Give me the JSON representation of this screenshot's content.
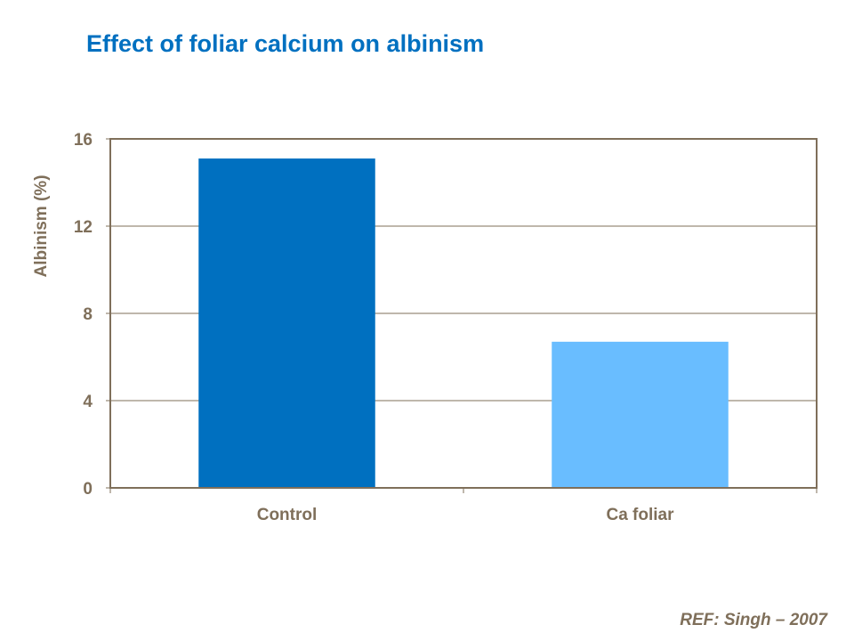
{
  "title": "Effect of foliar calcium on albinism",
  "reference": "REF: Singh – 2007",
  "chart_data": {
    "type": "bar",
    "title": "Effect of foliar calcium on albinism",
    "categories": [
      "Control",
      "Ca foliar"
    ],
    "values": [
      15.1,
      6.7
    ],
    "bar_colors": [
      "#0070C0",
      "#69BDFF"
    ],
    "xlabel": "",
    "ylabel": "Albinism (%)",
    "ylim": [
      0,
      16
    ],
    "yticks": [
      0,
      4,
      8,
      12,
      16
    ],
    "ytick_labels": [
      "0",
      "4",
      "8",
      "12",
      "16"
    ],
    "grid": true,
    "axis_color": "#7F6F5A"
  }
}
